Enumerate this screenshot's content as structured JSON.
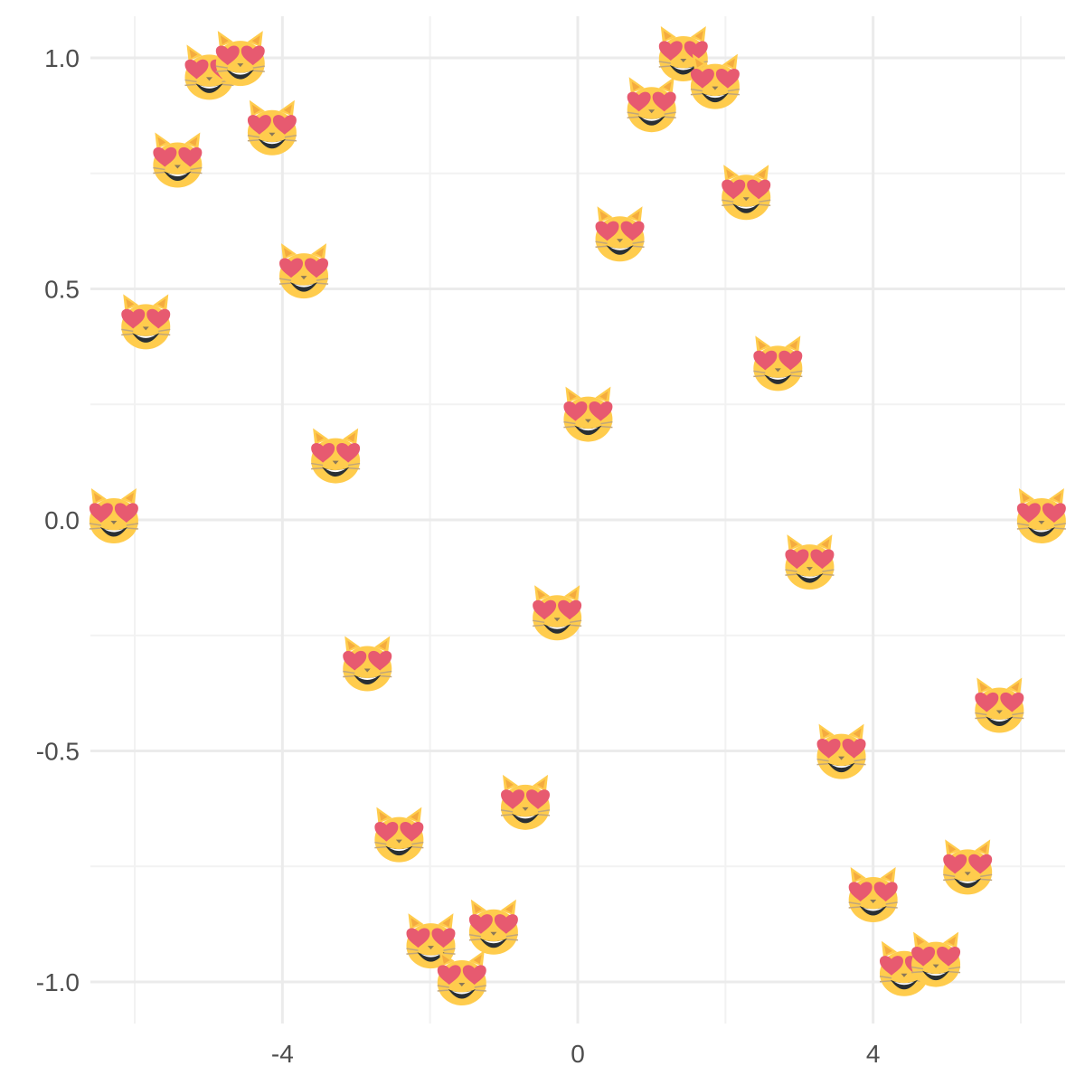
{
  "chart_data": {
    "type": "scatter",
    "title": "",
    "xlabel": "",
    "ylabel": "",
    "marker": "cat-heart-eyes-icon",
    "xlim": [
      -6.6,
      6.6
    ],
    "ylim": [
      -1.09,
      1.09
    ],
    "x_ticks": [
      -4,
      0,
      4
    ],
    "x_tick_labels": [
      "-4",
      "0",
      "4"
    ],
    "x_minor_gridlines": [
      -6,
      -2,
      2,
      6
    ],
    "y_ticks": [
      -1.0,
      -0.5,
      0.0,
      0.5,
      1.0
    ],
    "y_tick_labels": [
      "-1.0",
      "-0.5",
      "0.0",
      "0.5",
      "1.0"
    ],
    "y_minor_gridlines": [
      -0.75,
      -0.25,
      0.25,
      0.75
    ],
    "grid": true,
    "colors": {
      "background": "#ffffff",
      "major_grid": "#ebebeb",
      "minor_grid": "#f2f2f2",
      "tick_text": "#4d4d4d",
      "cat_face": "#ffcc4d",
      "heart": "#e75a70",
      "mouth": "#292f33"
    },
    "points": [
      {
        "x": -6.283,
        "y": 0.0
      },
      {
        "x": -5.85,
        "y": 0.42
      },
      {
        "x": -5.42,
        "y": 0.77
      },
      {
        "x": -4.99,
        "y": 0.96
      },
      {
        "x": -4.57,
        "y": 0.99
      },
      {
        "x": -4.14,
        "y": 0.84
      },
      {
        "x": -3.71,
        "y": 0.53
      },
      {
        "x": -3.28,
        "y": 0.13
      },
      {
        "x": -2.85,
        "y": -0.32
      },
      {
        "x": -2.42,
        "y": -0.69
      },
      {
        "x": -1.99,
        "y": -0.92
      },
      {
        "x": -1.57,
        "y": -1.0
      },
      {
        "x": -1.14,
        "y": -0.89
      },
      {
        "x": -0.71,
        "y": -0.62
      },
      {
        "x": -0.28,
        "y": -0.21
      },
      {
        "x": 0.14,
        "y": 0.22
      },
      {
        "x": 0.57,
        "y": 0.61
      },
      {
        "x": 1.0,
        "y": 0.89
      },
      {
        "x": 1.43,
        "y": 1.0
      },
      {
        "x": 1.86,
        "y": 0.94
      },
      {
        "x": 2.28,
        "y": 0.7
      },
      {
        "x": 2.71,
        "y": 0.33
      },
      {
        "x": 3.14,
        "y": -0.1
      },
      {
        "x": 3.57,
        "y": -0.51
      },
      {
        "x": 4.0,
        "y": -0.82
      },
      {
        "x": 4.42,
        "y": -0.98
      },
      {
        "x": 4.85,
        "y": -0.96
      },
      {
        "x": 5.28,
        "y": -0.76
      },
      {
        "x": 5.71,
        "y": -0.41
      },
      {
        "x": 6.28,
        "y": 0.0
      }
    ]
  }
}
